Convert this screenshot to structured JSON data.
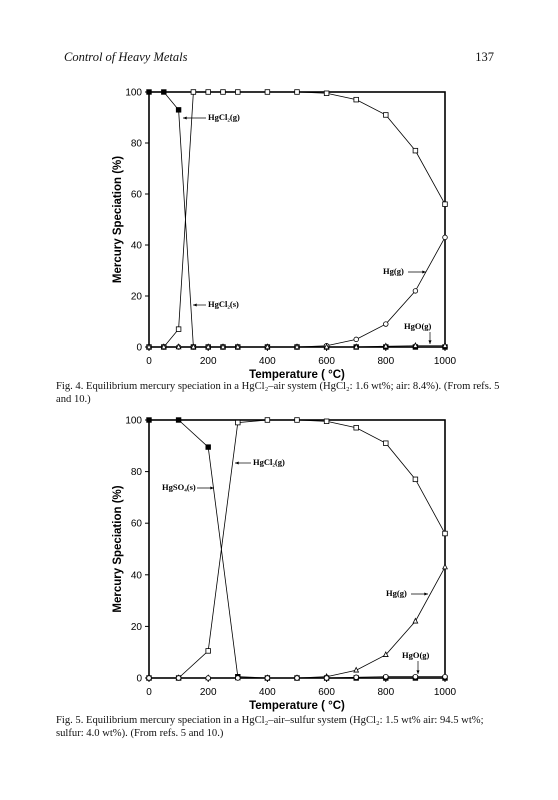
{
  "header": {
    "title": "Control of Heavy Metals",
    "page": "137"
  },
  "chart_data": [
    {
      "type": "line",
      "xlabel": "Temperature ( °C)",
      "ylabel": "Mercury Speciation (%)",
      "caption": "Fig. 4. Equilibrium mercury speciation in a HgCl₂–air system (HgCl₂: 1.6 wt%; air: 8.4%). (From refs. 5 and 10.)",
      "x": [
        0,
        50,
        100,
        150,
        200,
        250,
        300,
        400,
        500,
        600,
        700,
        800,
        900,
        1000
      ],
      "xlim": [
        0,
        1000
      ],
      "xticks": [
        0,
        200,
        400,
        600,
        800,
        1000
      ],
      "ylim": [
        0,
        100
      ],
      "yticks": [
        0,
        20,
        40,
        60,
        80,
        100
      ],
      "series": [
        {
          "name": "HgCl₂(g)",
          "color": "#000000",
          "marker": "open-square",
          "values": [
            0,
            0,
            7,
            100,
            100,
            100,
            100,
            100,
            100,
            99.5,
            97,
            91,
            77,
            56
          ]
        },
        {
          "name": "HgCl₂(s)",
          "color": "#000000",
          "marker": "filled-square",
          "values": [
            100,
            100,
            93,
            0,
            0,
            0,
            0,
            0,
            0,
            0,
            0,
            0,
            0,
            0
          ]
        },
        {
          "name": "Hg(g)",
          "color": "#000000",
          "marker": "circle",
          "values": [
            0,
            0,
            0,
            0,
            0,
            0,
            0,
            0,
            0,
            0.5,
            3,
            9,
            22,
            43
          ]
        },
        {
          "name": "HgO(g)",
          "color": "#000000",
          "marker": "triangle",
          "values": [
            0,
            0,
            0,
            0,
            0,
            0,
            0,
            0,
            0,
            0,
            0,
            0.3,
            0.5,
            0.5
          ]
        }
      ]
    },
    {
      "type": "line",
      "xlabel": "Temperature ( °C)",
      "ylabel": "Mercury Speciation (%)",
      "caption": "Fig. 5. Equilibrium mercury speciation in a HgCl₂–air–sulfur system (HgCl₂: 1.5 wt% air: 94.5 wt%; sulfur: 4.0 wt%). (From refs. 5 and 10.)",
      "x": [
        0,
        100,
        200,
        300,
        400,
        500,
        600,
        700,
        800,
        900,
        1000
      ],
      "xlim": [
        0,
        1000
      ],
      "xticks": [
        0,
        200,
        400,
        600,
        800,
        1000
      ],
      "ylim": [
        0,
        100
      ],
      "yticks": [
        0,
        20,
        40,
        60,
        80,
        100
      ],
      "series": [
        {
          "name": "HgCl₂(g)",
          "color": "#000000",
          "marker": "open-square",
          "values": [
            0,
            0,
            10.5,
            99,
            100,
            100,
            99.5,
            97,
            91,
            77,
            56
          ]
        },
        {
          "name": "HgSO₄(s)",
          "color": "#000000",
          "marker": "filled-square",
          "values": [
            100,
            100,
            89.5,
            0.5,
            0,
            0,
            0,
            0,
            0,
            0,
            0
          ]
        },
        {
          "name": "Hg(g)",
          "color": "#000000",
          "marker": "triangle",
          "values": [
            0,
            0,
            0,
            0,
            0,
            0,
            0.5,
            3,
            9,
            22,
            43
          ]
        },
        {
          "name": "HgO(g)",
          "color": "#000000",
          "marker": "circle",
          "values": [
            0,
            0,
            0,
            0,
            0,
            0,
            0,
            0.3,
            0.5,
            0.5,
            0.5
          ]
        }
      ]
    }
  ]
}
